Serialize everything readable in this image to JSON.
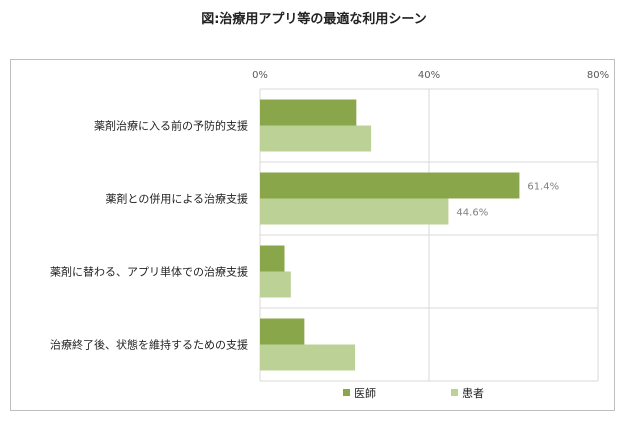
{
  "title": "図:治療用アプリ等の最適な利用シーン",
  "chart_data": {
    "type": "bar",
    "orientation": "horizontal",
    "categories": [
      "薬剤治療に入る前の予防的支援",
      "薬剤との併用による治療支援",
      "薬剤に替わる、アプリ単体での治療支援",
      "治療終了後、状態を維持するための支援"
    ],
    "series": [
      {
        "name": "医師",
        "color": "#8aa64a",
        "values": [
          22.8,
          61.4,
          5.8,
          10.5
        ]
      },
      {
        "name": "患者",
        "color": "#bcd196",
        "values": [
          26.3,
          44.6,
          7.3,
          22.5
        ]
      }
    ],
    "data_labels": [
      {
        "series": 0,
        "category": 1,
        "text": "61.4%"
      },
      {
        "series": 1,
        "category": 1,
        "text": "44.6%"
      }
    ],
    "xlim": [
      0,
      80
    ],
    "xticks": [
      "0%",
      "40%",
      "80%"
    ],
    "grid": true,
    "legend_position": "bottom"
  }
}
